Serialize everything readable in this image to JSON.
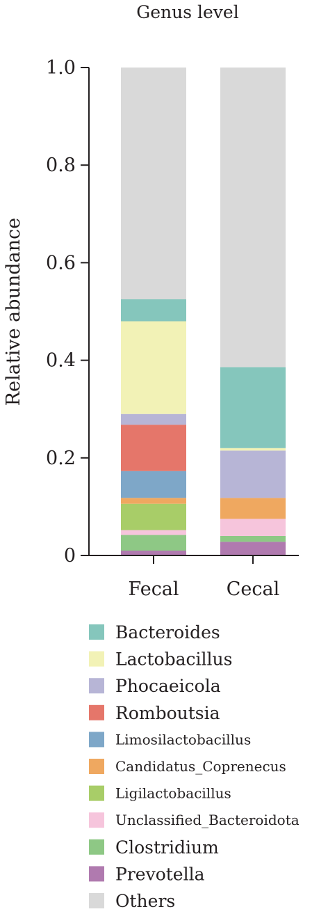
{
  "chart_data": {
    "type": "stacked_bar",
    "title": "Genus level",
    "xlabel": "",
    "ylabel": "Relative abundance",
    "categories": [
      "Fecal",
      "Cecal"
    ],
    "ylim": [
      0,
      1.0
    ],
    "yticks": [
      {
        "value": 0,
        "label": "0"
      },
      {
        "value": 0.2,
        "label": "0.2"
      },
      {
        "value": 0.4,
        "label": "0.4"
      },
      {
        "value": 0.6,
        "label": "0.6"
      },
      {
        "value": 0.8,
        "label": "0.8"
      },
      {
        "value": 1.0,
        "label": "1.0"
      }
    ],
    "grid": false,
    "legend_position": "bottom",
    "series": [
      {
        "name": "Prevotella",
        "color": "#b07aaf",
        "values": [
          0.01,
          0.028
        ]
      },
      {
        "name": "Clostridium",
        "color": "#8ec885",
        "values": [
          0.032,
          0.012
        ]
      },
      {
        "name": "Unclassified_Bacteroidota",
        "color": "#f6c5dc",
        "values": [
          0.01,
          0.035
        ]
      },
      {
        "name": "Ligilactobacillus",
        "color": "#a8cd68",
        "values": [
          0.054,
          0.0
        ]
      },
      {
        "name": "Candidatus_Coprenecus",
        "color": "#efa860",
        "values": [
          0.012,
          0.043
        ]
      },
      {
        "name": "Limosilactobacillus",
        "color": "#7ea7c8",
        "values": [
          0.055,
          0.0
        ]
      },
      {
        "name": "Romboutsia",
        "color": "#e5766a",
        "values": [
          0.095,
          0.0
        ]
      },
      {
        "name": "Phocaeicola",
        "color": "#b7b5d6",
        "values": [
          0.022,
          0.097
        ]
      },
      {
        "name": "Lactobacillus",
        "color": "#f2f2b6",
        "values": [
          0.19,
          0.005
        ]
      },
      {
        "name": "Bacteroides",
        "color": "#85c6bc",
        "values": [
          0.045,
          0.166
        ]
      },
      {
        "name": "Others",
        "color": "#d9d9d9",
        "values": [
          0.475,
          0.614
        ]
      }
    ],
    "legend_order": [
      "Bacteroides",
      "Lactobacillus",
      "Phocaeicola",
      "Romboutsia",
      "Limosilactobacillus",
      "Candidatus_Coprenecus",
      "Ligilactobacillus",
      "Unclassified_Bacteroidota",
      "Clostridium",
      "Prevotella",
      "Others"
    ]
  }
}
